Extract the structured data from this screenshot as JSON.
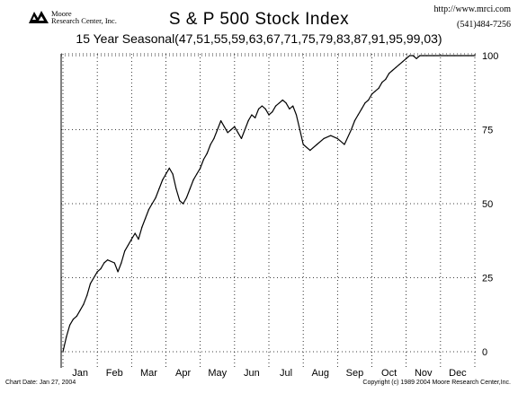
{
  "header": {
    "logo_line1": "Moore",
    "logo_line2": "Research Center, Inc.",
    "title": "S & P 500 Stock Index",
    "subtitle": "15 Year Seasonal(47,51,55,59,63,67,71,75,79,83,87,91,95,99,03)",
    "url": "http://www.mrci.com",
    "phone": "(541)484-7256"
  },
  "footer": {
    "chart_date": "Chart Date: Jan 27, 2004",
    "copyright": "Copyright (c) 1989 2004 Moore Research Center,Inc."
  },
  "colors": {
    "line": "#000000",
    "grid": "#000000",
    "background": "#ffffff"
  },
  "chart_data": {
    "type": "line",
    "title": "S & P 500 Stock Index",
    "subtitle": "15 Year Seasonal(47,51,55,59,63,67,71,75,79,83,87,91,95,99,03)",
    "xlabel": "",
    "ylabel": "",
    "ylim": [
      0,
      100
    ],
    "yticks": [
      0,
      25,
      50,
      75,
      100
    ],
    "xlim": [
      0,
      12
    ],
    "months": [
      "Jan",
      "Feb",
      "Mar",
      "Apr",
      "May",
      "Jun",
      "Jul",
      "Aug",
      "Sep",
      "Oct",
      "Nov",
      "Dec"
    ],
    "grid": true,
    "y_axis_side": "right",
    "series": [
      {
        "x": [
          0.0,
          0.1,
          0.2,
          0.3,
          0.4,
          0.5,
          0.6,
          0.7,
          0.8,
          1.0,
          1.1,
          1.2,
          1.3,
          1.5,
          1.6,
          1.7,
          1.8,
          1.9,
          2.0,
          2.1,
          2.2,
          2.3,
          2.4,
          2.5,
          2.6,
          2.7,
          2.8,
          2.9,
          3.0,
          3.1,
          3.2,
          3.3,
          3.4,
          3.5,
          3.6,
          3.7,
          3.8,
          3.9,
          4.0,
          4.1,
          4.2,
          4.3,
          4.4,
          4.5,
          4.6,
          4.7,
          4.8,
          4.9,
          5.0,
          5.1,
          5.2,
          5.3,
          5.4,
          5.5,
          5.6,
          5.7,
          5.8,
          5.9,
          6.0,
          6.1,
          6.2,
          6.3,
          6.4,
          6.5,
          6.6,
          6.7,
          6.8,
          6.9,
          7.0,
          7.2,
          7.4,
          7.6,
          7.8,
          8.0,
          8.2,
          8.4,
          8.5,
          8.6,
          8.7,
          8.8,
          8.9,
          9.0,
          9.1,
          9.2,
          9.3,
          9.4,
          9.5,
          9.6,
          9.7,
          9.8,
          9.9,
          10.0,
          10.1,
          10.2,
          10.3,
          10.4,
          10.5,
          10.6,
          10.8,
          11.0,
          11.2,
          11.4,
          11.6,
          11.8,
          11.9,
          12.0
        ],
        "y": [
          0,
          5,
          9,
          11,
          12,
          14,
          16,
          19,
          23,
          27,
          28,
          30,
          31,
          30,
          27,
          30,
          34,
          36,
          38,
          40,
          38,
          42,
          45,
          48,
          50,
          52,
          55,
          58,
          60,
          62,
          60,
          55,
          51,
          50,
          52,
          55,
          58,
          60,
          62,
          65,
          67,
          70,
          72,
          75,
          78,
          76,
          74,
          75,
          76,
          74,
          72,
          75,
          78,
          80,
          79,
          82,
          83,
          82,
          80,
          81,
          83,
          84,
          85,
          84,
          82,
          83,
          80,
          75,
          70,
          68,
          70,
          72,
          73,
          72,
          70,
          75,
          78,
          80,
          82,
          84,
          85,
          87,
          88,
          89,
          91,
          92,
          94,
          95,
          96,
          97,
          98,
          99,
          100,
          100,
          99,
          100,
          100,
          100,
          100,
          100,
          100,
          100,
          100,
          100,
          100,
          100
        ]
      }
    ]
  }
}
